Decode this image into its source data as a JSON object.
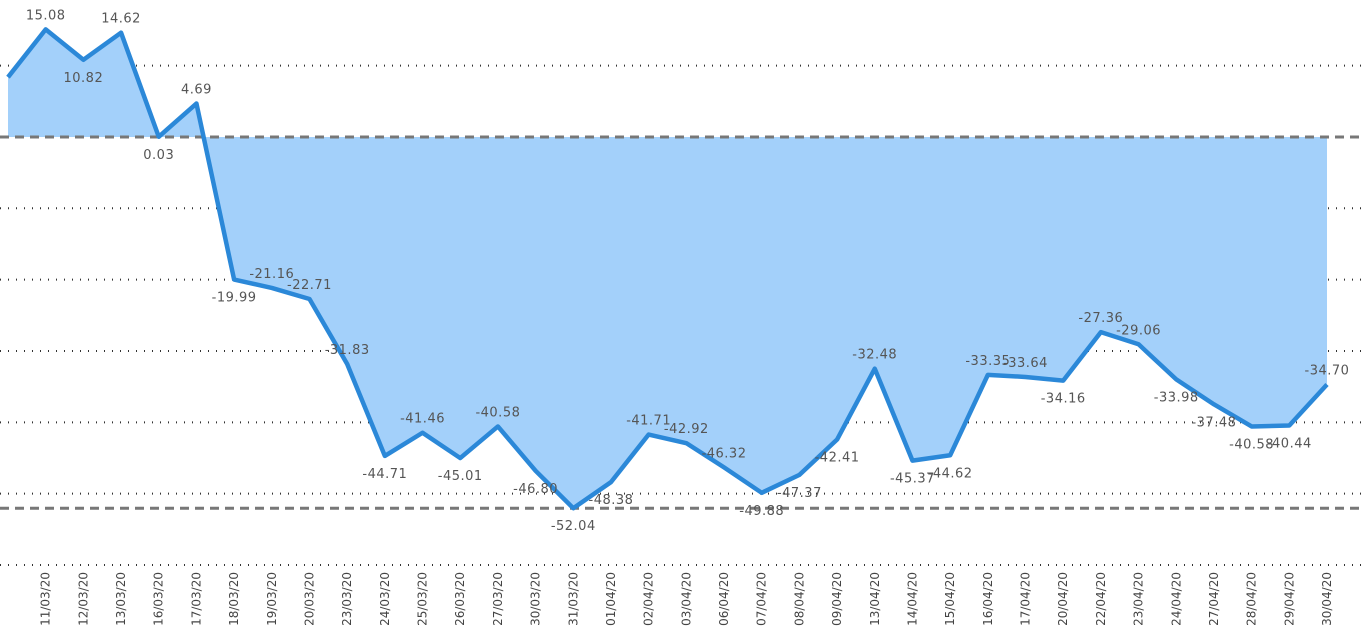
{
  "chart_data": {
    "type": "area",
    "categories": [
      null,
      "11/03/20",
      "12/03/20",
      "13/03/20",
      "16/03/20",
      "17/03/20",
      "18/03/20",
      "19/03/20",
      "20/03/20",
      "23/03/20",
      "24/03/20",
      "25/03/20",
      "26/03/20",
      "27/03/20",
      "30/03/20",
      "31/03/20",
      "01/04/20",
      "02/04/20",
      "03/04/20",
      "06/04/20",
      "07/04/20",
      "08/04/20",
      "09/04/20",
      "13/04/20",
      "14/04/20",
      "15/04/20",
      "16/04/20",
      "17/04/20",
      "20/04/20",
      "22/04/20",
      "23/04/20",
      "24/04/20",
      "27/04/20",
      "28/04/20",
      "29/04/20",
      "30/04/20"
    ],
    "values": [
      8.38,
      15.08,
      10.82,
      14.62,
      0.03,
      4.69,
      -19.99,
      -21.16,
      -22.71,
      -31.83,
      -44.71,
      -41.46,
      -45.01,
      -40.58,
      -46.8,
      -52.04,
      -48.38,
      -41.71,
      -42.92,
      -46.32,
      -49.88,
      -47.37,
      -42.41,
      -32.48,
      -45.37,
      -44.62,
      -33.35,
      -33.64,
      -34.16,
      -27.36,
      -29.06,
      -33.98,
      -37.48,
      -40.58,
      -40.44,
      -34.7
    ],
    "value_labels": [
      null,
      "15.08",
      "10.82",
      "14.62",
      "0.03",
      "4.69",
      "-19.99",
      "-21.16",
      "-22.71",
      "-31.83",
      "-44.71",
      "-41.46",
      "-45.01",
      "-40.58",
      "-46.80",
      "-52.04",
      "-48.38",
      "-41.71",
      "-42.92",
      "-46.32",
      "-49.88",
      "-47.37",
      "-42.41",
      "-32.48",
      "-45.37",
      "-44.62",
      "-33.35",
      "-33.64",
      "-34.16",
      "-27.36",
      "-29.06",
      "-33.98",
      "-37.48",
      "-40.58",
      "-40.44",
      "-34.70"
    ],
    "color": "#2b88d8",
    "fill_color": "#a3d0fa",
    "ylim": [
      -60,
      19.2
    ],
    "grid_values": [
      10,
      -10,
      -20,
      -30,
      -40,
      -50,
      -60
    ],
    "reference_lines": [
      0,
      -52.04
    ]
  }
}
